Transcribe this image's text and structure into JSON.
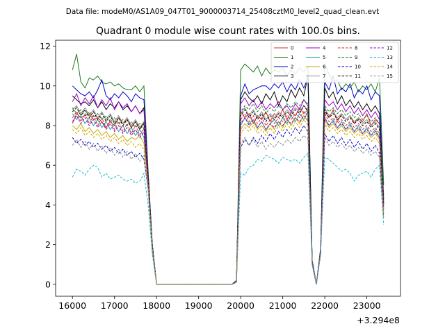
{
  "suptitle": "Data file: modeM0/AS1A09_047T01_9000003714_25408cztM0_level2_quad_clean.evt",
  "chart_data": {
    "type": "line",
    "title": "Quadrant 0 module wise count rates with 100.0s bins.",
    "xlabel": "",
    "ylabel": "",
    "x_offset_label": "+3.294e8",
    "xlim": [
      15600,
      23800
    ],
    "ylim": [
      -0.6,
      12.3
    ],
    "x_ticks": [
      16000,
      17000,
      18000,
      19000,
      20000,
      21000,
      22000,
      23000
    ],
    "x_tick_labels": [
      "16000",
      "17000",
      "18000",
      "19000",
      "20000",
      "21000",
      "22000",
      "23000"
    ],
    "y_ticks": [
      0,
      2,
      4,
      6,
      8,
      10,
      12
    ],
    "y_tick_labels": [
      "0",
      "2",
      "4",
      "6",
      "8",
      "10",
      "12"
    ],
    "legend_position": "top-right",
    "x": [
      16000,
      16100,
      16200,
      16300,
      16400,
      16500,
      16600,
      16700,
      16800,
      16900,
      17000,
      17100,
      17200,
      17300,
      17400,
      17500,
      17600,
      17700,
      17800,
      17900,
      18000,
      19800,
      19900,
      20000,
      20100,
      20200,
      20300,
      20400,
      20500,
      20600,
      20700,
      20800,
      20900,
      21000,
      21100,
      21200,
      21300,
      21400,
      21500,
      21600,
      21700,
      21800,
      21900,
      22000,
      22100,
      22200,
      22300,
      22400,
      22500,
      22600,
      22700,
      22800,
      22900,
      23000,
      23100,
      23200,
      23300,
      23400
    ],
    "series": [
      {
        "name": "0",
        "color": "#d62728",
        "dash": "solid",
        "values": [
          8.1,
          8.6,
          8.4,
          8.5,
          8.6,
          8.3,
          8.4,
          8.2,
          7.9,
          8.2,
          8.0,
          8.4,
          8.1,
          8.3,
          7.9,
          8.2,
          7.8,
          8.2,
          5.6,
          2.0,
          0.0,
          0.0,
          0.2,
          8.7,
          8.4,
          8.6,
          8.1,
          8.5,
          8.3,
          8.7,
          8.2,
          8.6,
          8.4,
          8.8,
          8.3,
          8.7,
          8.5,
          8.9,
          8.6,
          8.8,
          1.2,
          0.0,
          1.8,
          8.7,
          8.4,
          8.8,
          8.2,
          8.6,
          8.3,
          8.5,
          8.1,
          8.4,
          8.2,
          8.6,
          8.0,
          8.3,
          8.1,
          4.5
        ]
      },
      {
        "name": "1",
        "color": "#1a7a1a",
        "dash": "solid",
        "values": [
          10.8,
          11.6,
          10.2,
          9.9,
          10.4,
          10.3,
          10.5,
          10.2,
          10.1,
          10.2,
          10.0,
          10.1,
          9.9,
          9.8,
          9.8,
          10.0,
          9.7,
          10.0,
          5.7,
          2.0,
          0.0,
          0.0,
          0.2,
          10.8,
          11.1,
          10.9,
          10.7,
          11.0,
          10.5,
          10.9,
          10.6,
          10.8,
          10.7,
          10.9,
          10.5,
          10.8,
          10.6,
          10.9,
          10.7,
          11.0,
          1.2,
          0.0,
          1.8,
          11.1,
          10.6,
          10.2,
          10.3,
          9.8,
          10.1,
          9.9,
          10.2,
          9.7,
          10.0,
          9.8,
          10.1,
          9.7,
          10.4,
          5.0
        ]
      },
      {
        "name": "2",
        "color": "#0000cc",
        "dash": "solid",
        "values": [
          10.0,
          9.8,
          9.6,
          9.5,
          9.7,
          9.4,
          9.8,
          10.3,
          9.5,
          9.3,
          9.6,
          9.4,
          9.7,
          9.5,
          9.2,
          9.6,
          9.4,
          9.3,
          5.5,
          2.0,
          0.0,
          0.0,
          0.2,
          9.5,
          10.1,
          9.6,
          9.8,
          9.9,
          10.0,
          10.0,
          9.8,
          10.1,
          9.9,
          10.2,
          9.7,
          10.1,
          9.8,
          10.3,
          9.9,
          10.4,
          1.2,
          0.0,
          1.8,
          10.2,
          9.8,
          10.5,
          9.6,
          9.9,
          9.7,
          10.1,
          9.4,
          9.8,
          9.6,
          10.0,
          9.3,
          9.7,
          9.5,
          4.0
        ]
      },
      {
        "name": "3",
        "color": "#000000",
        "dash": "solid",
        "values": [
          9.5,
          9.3,
          9.1,
          9.2,
          9.0,
          9.3,
          8.9,
          9.2,
          8.8,
          9.1,
          8.9,
          9.2,
          8.8,
          9.0,
          8.7,
          9.0,
          8.6,
          8.9,
          5.4,
          1.9,
          0.0,
          0.0,
          0.2,
          9.3,
          9.7,
          9.4,
          9.2,
          9.5,
          9.1,
          9.6,
          9.3,
          9.7,
          9.0,
          9.5,
          9.2,
          9.8,
          9.4,
          9.9,
          9.5,
          10.5,
          1.1,
          0.0,
          1.7,
          9.9,
          9.4,
          9.7,
          9.1,
          9.5,
          9.0,
          9.3,
          8.9,
          9.2,
          8.8,
          9.1,
          8.7,
          9.0,
          8.6,
          4.3
        ]
      },
      {
        "name": "4",
        "color": "#9900cc",
        "dash": "solid",
        "values": [
          9.2,
          9.6,
          9.0,
          9.4,
          9.1,
          9.5,
          8.9,
          9.3,
          9.0,
          9.4,
          8.8,
          9.2,
          8.9,
          9.1,
          8.7,
          9.0,
          8.6,
          8.8,
          5.4,
          1.9,
          0.0,
          0.0,
          0.2,
          9.1,
          9.4,
          9.0,
          9.3,
          8.9,
          9.2,
          8.8,
          9.1,
          8.9,
          9.2,
          8.8,
          9.0,
          8.7,
          9.1,
          8.8,
          9.3,
          9.0,
          1.1,
          0.0,
          1.7,
          9.3,
          9.0,
          9.2,
          8.8,
          9.1,
          8.7,
          9.0,
          8.6,
          8.9,
          8.5,
          8.8,
          8.4,
          8.7,
          8.3,
          4.2
        ]
      },
      {
        "name": "5",
        "color": "#17a89a",
        "dash": "solid",
        "values": [
          8.6,
          8.3,
          8.5,
          8.1,
          8.4,
          8.0,
          8.3,
          7.9,
          8.2,
          7.8,
          8.1,
          7.7,
          8.0,
          7.6,
          7.9,
          7.5,
          7.8,
          7.4,
          5.2,
          1.8,
          0.0,
          0.0,
          0.2,
          8.0,
          8.4,
          8.1,
          8.3,
          7.9,
          8.2,
          7.8,
          8.1,
          8.3,
          8.0,
          8.4,
          8.1,
          8.5,
          8.2,
          8.6,
          8.3,
          8.7,
          1.1,
          0.0,
          1.7,
          8.4,
          8.0,
          8.3,
          7.9,
          8.2,
          7.8,
          8.1,
          7.7,
          8.0,
          7.6,
          7.9,
          7.5,
          7.8,
          7.4,
          3.8
        ]
      },
      {
        "name": "6",
        "color": "#c8a800",
        "dash": "solid",
        "values": [
          8.0,
          7.8,
          8.1,
          7.7,
          7.9,
          7.6,
          7.8,
          7.5,
          7.7,
          7.4,
          7.6,
          7.3,
          7.5,
          7.2,
          7.4,
          7.3,
          7.5,
          7.1,
          5.0,
          1.8,
          0.0,
          0.0,
          0.1,
          7.8,
          8.1,
          7.9,
          8.2,
          7.8,
          8.0,
          7.7,
          8.1,
          7.8,
          8.2,
          7.9,
          8.3,
          8.0,
          8.4,
          8.1,
          8.5,
          8.2,
          1.0,
          0.0,
          1.6,
          8.3,
          7.9,
          8.1,
          7.8,
          8.0,
          7.7,
          7.9,
          7.6,
          7.8,
          7.5,
          7.7,
          7.4,
          7.6,
          7.3,
          3.6
        ]
      },
      {
        "name": "7",
        "color": "#888888",
        "dash": "solid",
        "values": [
          8.8,
          9.0,
          8.6,
          8.9,
          8.5,
          8.8,
          8.4,
          8.7,
          8.3,
          8.6,
          8.2,
          8.5,
          8.1,
          8.4,
          8.0,
          8.3,
          7.9,
          8.2,
          5.3,
          1.9,
          0.0,
          0.0,
          0.2,
          8.6,
          8.9,
          8.5,
          8.8,
          8.4,
          8.7,
          8.3,
          8.6,
          8.4,
          8.7,
          8.5,
          8.8,
          8.6,
          8.9,
          8.7,
          9.0,
          8.8,
          1.1,
          0.0,
          1.7,
          8.9,
          8.5,
          8.7,
          8.4,
          8.6,
          8.3,
          8.5,
          8.2,
          8.4,
          8.1,
          8.3,
          8.0,
          8.2,
          7.9,
          4.1
        ]
      },
      {
        "name": "8",
        "color": "#d62728",
        "dash": "dashed",
        "values": [
          8.4,
          8.7,
          8.2,
          8.6,
          8.1,
          8.5,
          8.0,
          8.4,
          7.9,
          8.3,
          7.8,
          8.2,
          7.7,
          8.1,
          7.6,
          8.0,
          7.5,
          7.9,
          5.2,
          1.8,
          0.0,
          0.0,
          0.2,
          8.3,
          8.6,
          8.2,
          8.5,
          8.1,
          8.4,
          8.0,
          8.3,
          8.1,
          8.4,
          8.2,
          8.5,
          8.3,
          8.6,
          8.4,
          8.7,
          8.5,
          1.1,
          0.0,
          1.7,
          8.6,
          8.2,
          8.4,
          8.1,
          8.3,
          8.0,
          8.2,
          7.9,
          8.1,
          7.8,
          8.0,
          7.7,
          7.9,
          7.6,
          3.9
        ]
      },
      {
        "name": "9",
        "color": "#1a7a1a",
        "dash": "dashed",
        "values": [
          8.9,
          8.6,
          8.8,
          8.5,
          8.7,
          8.4,
          8.6,
          8.3,
          8.5,
          8.2,
          8.4,
          8.1,
          8.3,
          8.0,
          8.2,
          7.9,
          8.1,
          7.8,
          5.3,
          1.9,
          0.0,
          0.0,
          0.2,
          8.7,
          9.0,
          8.8,
          9.1,
          8.7,
          9.0,
          8.6,
          8.9,
          8.7,
          9.0,
          8.8,
          9.1,
          8.9,
          9.2,
          9.0,
          9.3,
          9.1,
          1.1,
          0.0,
          1.7,
          9.0,
          8.7,
          8.9,
          8.6,
          8.8,
          8.5,
          8.7,
          8.4,
          8.6,
          8.3,
          8.5,
          8.2,
          8.4,
          8.1,
          4.1
        ]
      },
      {
        "name": "10",
        "color": "#0000cc",
        "dash": "dashed",
        "values": [
          7.4,
          7.1,
          7.3,
          7.0,
          7.2,
          6.9,
          7.1,
          6.8,
          7.0,
          6.7,
          6.9,
          6.6,
          6.8,
          6.5,
          6.7,
          6.4,
          6.6,
          6.3,
          4.8,
          1.7,
          0.0,
          0.0,
          0.1,
          6.9,
          7.3,
          7.0,
          7.4,
          7.1,
          7.5,
          7.2,
          7.6,
          7.3,
          7.7,
          7.4,
          7.8,
          7.5,
          7.9,
          7.6,
          8.0,
          7.7,
          1.0,
          0.0,
          1.5,
          7.6,
          7.2,
          7.5,
          7.1,
          7.4,
          7.0,
          7.3,
          6.9,
          7.2,
          6.8,
          7.1,
          6.7,
          7.0,
          6.6,
          3.4
        ]
      },
      {
        "name": "11",
        "color": "#000000",
        "dash": "dashed",
        "values": [
          8.7,
          8.9,
          8.5,
          8.8,
          8.4,
          8.7,
          8.3,
          8.6,
          8.2,
          8.5,
          8.1,
          8.4,
          8.0,
          8.3,
          7.9,
          8.2,
          7.8,
          8.1,
          5.3,
          1.9,
          0.0,
          0.0,
          0.2,
          8.5,
          8.8,
          8.4,
          8.7,
          8.3,
          8.6,
          8.2,
          8.5,
          8.3,
          8.6,
          8.4,
          8.7,
          8.5,
          8.8,
          8.6,
          9.0,
          8.7,
          1.1,
          0.0,
          1.7,
          8.8,
          8.4,
          8.6,
          8.3,
          8.5,
          8.2,
          8.4,
          8.1,
          8.3,
          8.0,
          8.2,
          7.9,
          8.1,
          7.8,
          4.0
        ]
      },
      {
        "name": "12",
        "color": "#9900cc",
        "dash": "dashed",
        "values": [
          8.2,
          8.5,
          8.1,
          8.4,
          8.0,
          8.3,
          7.9,
          8.2,
          7.8,
          8.1,
          7.7,
          8.0,
          7.6,
          7.9,
          7.5,
          7.8,
          7.4,
          7.7,
          5.1,
          1.8,
          0.0,
          0.0,
          0.2,
          8.1,
          8.4,
          8.0,
          8.3,
          7.9,
          8.2,
          7.8,
          8.1,
          7.9,
          8.2,
          8.0,
          8.3,
          8.1,
          8.4,
          8.2,
          8.5,
          8.3,
          1.0,
          0.0,
          1.6,
          8.4,
          8.0,
          8.2,
          7.9,
          8.1,
          7.8,
          8.0,
          7.7,
          7.9,
          7.6,
          7.8,
          7.5,
          7.7,
          7.4,
          3.8
        ]
      },
      {
        "name": "13",
        "color": "#17becf",
        "dash": "dashed",
        "values": [
          5.4,
          5.8,
          5.7,
          5.5,
          5.8,
          6.0,
          5.9,
          5.4,
          5.6,
          5.3,
          5.4,
          5.5,
          5.3,
          5.2,
          5.3,
          5.1,
          5.2,
          5.6,
          4.0,
          1.5,
          0.0,
          0.0,
          0.1,
          5.6,
          5.5,
          5.9,
          6.0,
          6.3,
          6.2,
          6.5,
          6.4,
          6.3,
          6.1,
          6.4,
          6.3,
          6.2,
          6.3,
          6.1,
          6.4,
          6.6,
          1.0,
          0.0,
          1.5,
          6.4,
          6.3,
          6.1,
          5.9,
          5.7,
          5.8,
          5.6,
          5.2,
          5.5,
          5.6,
          5.7,
          5.4,
          5.8,
          6.0,
          3.0
        ]
      },
      {
        "name": "14",
        "color": "#c8a800",
        "dash": "dashed",
        "values": [
          7.8,
          7.6,
          7.9,
          7.5,
          7.7,
          7.4,
          7.6,
          7.3,
          7.5,
          7.2,
          7.4,
          7.1,
          7.3,
          7.0,
          7.2,
          6.9,
          7.1,
          6.8,
          4.9,
          1.8,
          0.0,
          0.0,
          0.1,
          7.6,
          7.9,
          7.7,
          8.0,
          7.6,
          7.8,
          7.5,
          7.9,
          7.6,
          8.0,
          7.7,
          8.1,
          7.8,
          8.2,
          7.9,
          8.3,
          8.0,
          1.0,
          0.0,
          1.6,
          8.1,
          7.7,
          7.9,
          7.6,
          7.8,
          7.5,
          7.7,
          7.4,
          7.6,
          7.3,
          7.5,
          7.2,
          7.4,
          7.1,
          3.5
        ]
      },
      {
        "name": "15",
        "color": "#888888",
        "dash": "dashed",
        "values": [
          7.0,
          7.3,
          6.9,
          7.2,
          6.8,
          7.1,
          6.7,
          7.0,
          6.6,
          6.9,
          6.5,
          6.8,
          6.4,
          6.7,
          6.3,
          6.6,
          6.2,
          6.5,
          4.7,
          1.7,
          0.0,
          0.0,
          0.1,
          7.1,
          7.4,
          7.0,
          7.3,
          6.9,
          7.2,
          6.8,
          7.1,
          6.9,
          7.2,
          7.0,
          7.3,
          7.1,
          7.4,
          7.2,
          7.5,
          7.3,
          1.0,
          0.0,
          1.5,
          7.4,
          7.0,
          7.2,
          6.9,
          7.1,
          6.8,
          7.0,
          6.7,
          6.9,
          6.6,
          6.8,
          6.5,
          6.7,
          6.4,
          3.3
        ]
      }
    ]
  }
}
